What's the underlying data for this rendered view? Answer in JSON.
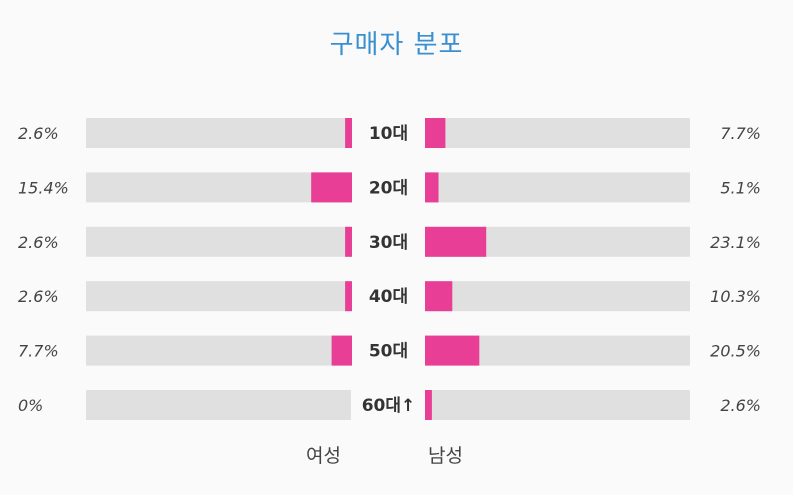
{
  "title": "구매자 분포",
  "colors": {
    "bar": "#e83e96",
    "track": "#e0e0e0"
  },
  "chart_data": {
    "type": "bar",
    "orientation": "horizontal-butterfly",
    "title": "구매자 분포",
    "categories": [
      "10대",
      "20대",
      "30대",
      "40대",
      "50대",
      "60대↑"
    ],
    "xlim": [
      0,
      100
    ],
    "series": [
      {
        "name": "여성",
        "values": [
          2.6,
          15.4,
          2.6,
          2.6,
          7.7,
          0
        ],
        "labels": [
          "2.6%",
          "15.4%",
          "2.6%",
          "2.6%",
          "7.7%",
          "0%"
        ]
      },
      {
        "name": "남성",
        "values": [
          7.7,
          5.1,
          23.1,
          10.3,
          20.5,
          2.6
        ],
        "labels": [
          "7.7%",
          "5.1%",
          "23.1%",
          "10.3%",
          "20.5%",
          "2.6%"
        ]
      }
    ]
  },
  "legend": {
    "female": "여성",
    "male": "남성"
  }
}
